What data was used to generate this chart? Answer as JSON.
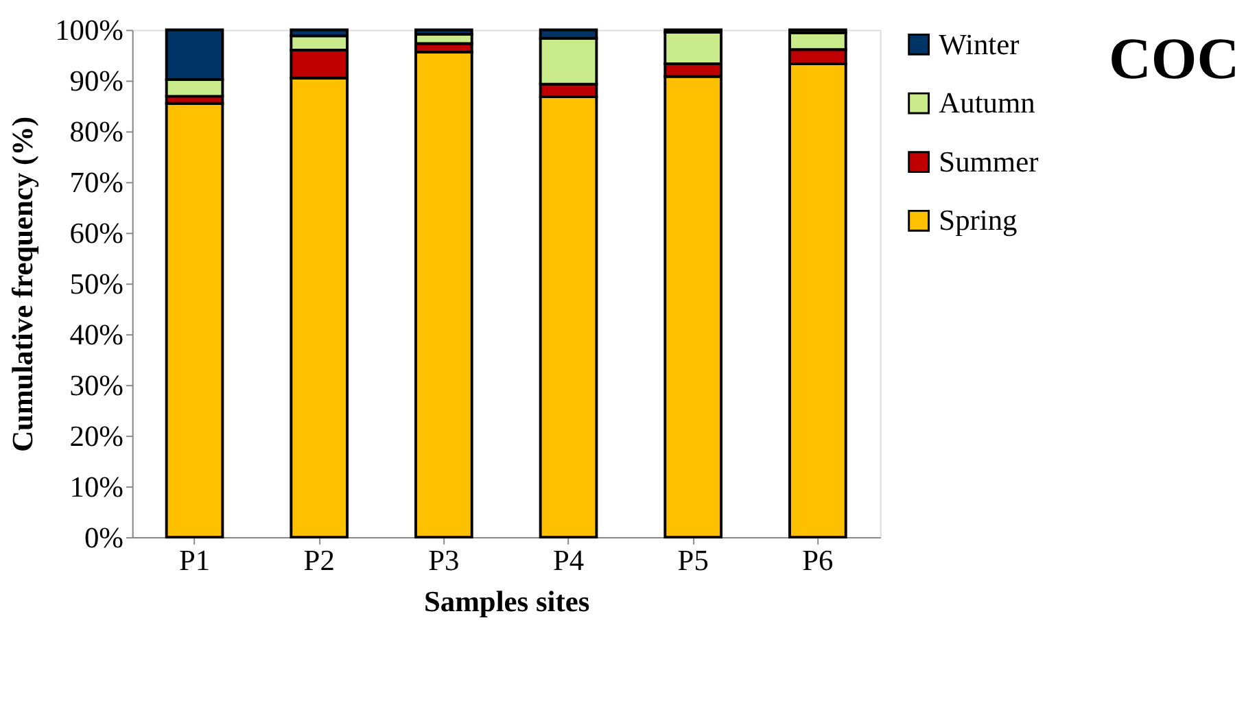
{
  "chart_data": {
    "type": "bar",
    "title": "COC",
    "xlabel": "Samples sites",
    "ylabel": "Cumulative frequency  (%)",
    "categories": [
      "P1",
      "P2",
      "P3",
      "P4",
      "P5",
      "P6"
    ],
    "stacked": true,
    "series": [
      {
        "name": "Spring",
        "color": "#ffc000",
        "values": [
          85.5,
          90.5,
          95.6,
          86.8,
          90.8,
          93.3
        ]
      },
      {
        "name": "Summer",
        "color": "#c00000",
        "values": [
          1.4,
          5.5,
          1.7,
          2.5,
          2.5,
          2.8
        ]
      },
      {
        "name": "Autumn",
        "color": "#c9eb8c",
        "values": [
          3.3,
          2.8,
          1.8,
          9.0,
          6.2,
          3.3
        ]
      },
      {
        "name": "Winter",
        "color": "#003366",
        "values": [
          9.8,
          1.2,
          0.9,
          1.7,
          0.5,
          0.6
        ]
      }
    ],
    "ylim": [
      0,
      100
    ],
    "yticks": [
      {
        "value": 0,
        "label": "0%"
      },
      {
        "value": 10,
        "label": "10%"
      },
      {
        "value": 20,
        "label": "20%"
      },
      {
        "value": 30,
        "label": "30%"
      },
      {
        "value": 40,
        "label": "40%"
      },
      {
        "value": 50,
        "label": "50%"
      },
      {
        "value": 60,
        "label": "60%"
      },
      {
        "value": 70,
        "label": "70%"
      },
      {
        "value": 80,
        "label": "80%"
      },
      {
        "value": 90,
        "label": "90%"
      },
      {
        "value": 100,
        "label": "100%"
      }
    ],
    "grid": false,
    "legend": "right"
  }
}
